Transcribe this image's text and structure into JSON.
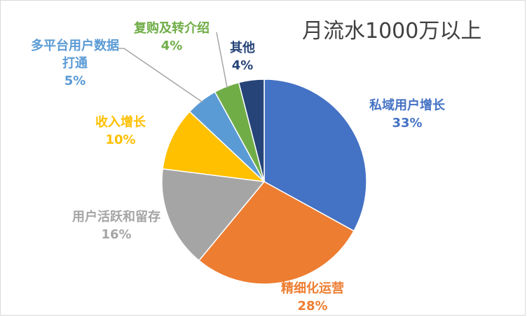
{
  "chart_data": {
    "type": "pie",
    "title": "月流水1000万以上",
    "legend": "none",
    "slices": [
      {
        "label": "私域用户增长",
        "value": 33,
        "display": "33%",
        "color": "#4472c4"
      },
      {
        "label": "精细化运营",
        "value": 28,
        "display": "28%",
        "color": "#ed7d31"
      },
      {
        "label": "用户活跃和留存",
        "value": 16,
        "display": "16%",
        "color": "#a5a5a5"
      },
      {
        "label": "收入增长",
        "value": 10,
        "display": "10%",
        "color": "#ffc000"
      },
      {
        "label": "多平台用户数据打通",
        "value": 5,
        "display": "5%",
        "color": "#5b9bd5"
      },
      {
        "label": "复购及转介绍",
        "value": 4,
        "display": "4%",
        "color": "#70ad47"
      },
      {
        "label": "其他",
        "value": 4,
        "display": "4%",
        "color": "#264478"
      }
    ]
  }
}
